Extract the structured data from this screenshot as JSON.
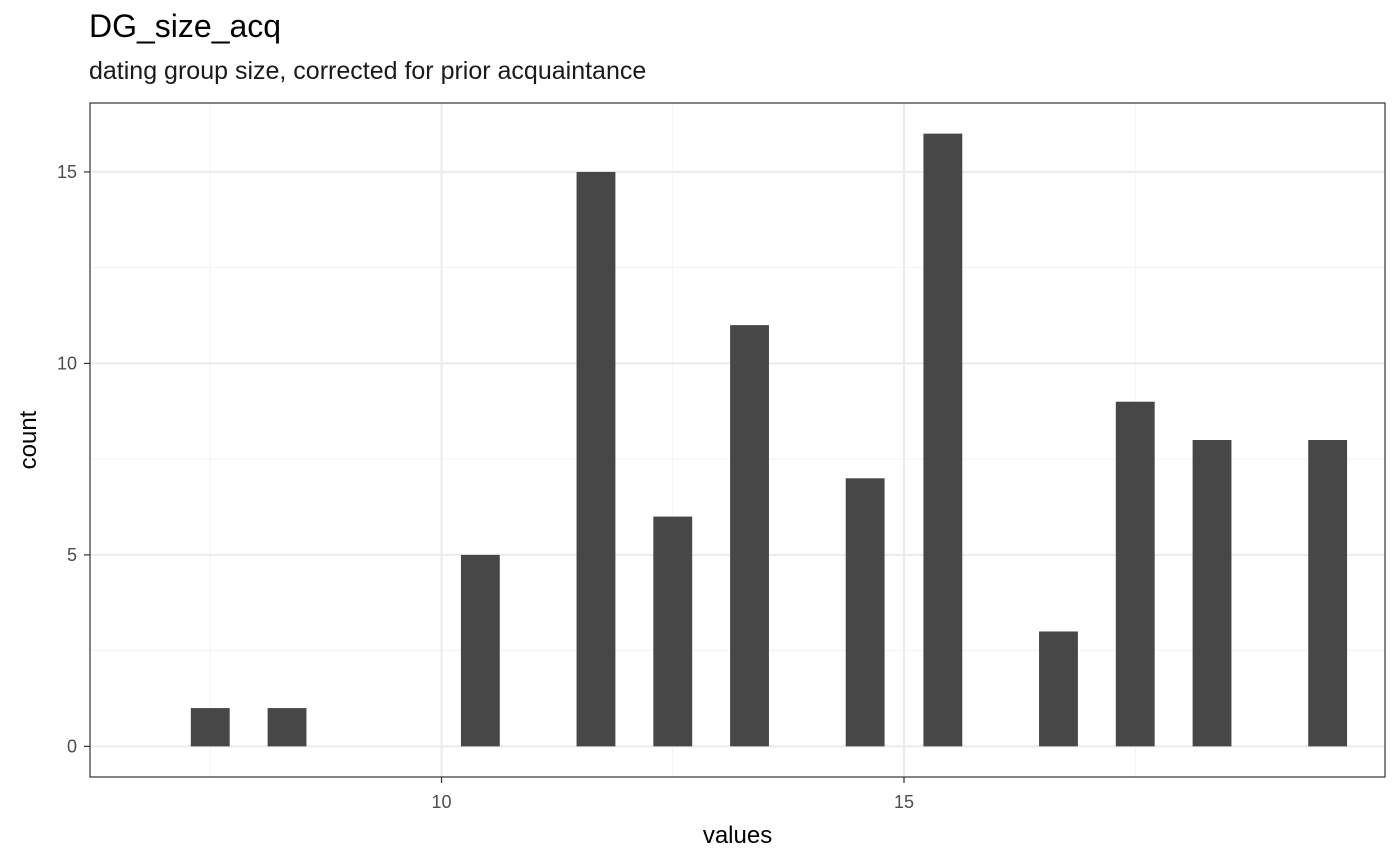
{
  "chart_data": {
    "type": "bar",
    "title": "DG_size_acq",
    "subtitle": "dating group size, corrected for prior acquaintance",
    "xlabel": "values",
    "ylabel": "count",
    "x": [
      7.5,
      8.33,
      10.42,
      11.67,
      12.5,
      13.33,
      14.58,
      15.42,
      16.67,
      17.5,
      18.33,
      19.58
    ],
    "values": [
      1,
      1,
      5,
      15,
      6,
      11,
      7,
      16,
      3,
      9,
      8,
      8
    ],
    "xlim": [
      6.2,
      20.2
    ],
    "ylim": [
      -0.8,
      16.8
    ],
    "xticks": [
      10,
      15
    ],
    "yticks": [
      0,
      5,
      10,
      15
    ],
    "x_minor_gridlines": [
      7.5,
      12.5,
      17.5
    ],
    "y_minor_gridlines": [
      2.5,
      7.5,
      12.5
    ],
    "bar_width": 0.42,
    "grid": true,
    "colors": {
      "bar": "#474747",
      "grid_major": "#ebebeb",
      "grid_minor": "#f3f3f3",
      "panel_border": "#333333"
    }
  }
}
